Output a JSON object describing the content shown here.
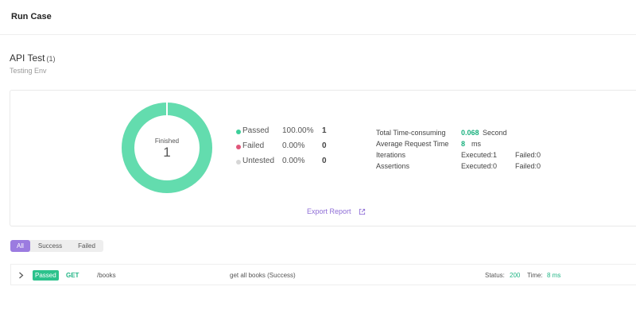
{
  "header": {
    "title": "Run Case"
  },
  "page": {
    "title": "API Test",
    "count": "(1)",
    "env": "Testing Env"
  },
  "summary": {
    "donut_label": "Finished",
    "donut_value": "1",
    "legend": [
      {
        "name": "Passed",
        "percent": "100.00%",
        "count": "1",
        "color": "#3dcf9a"
      },
      {
        "name": "Failed",
        "percent": "0.00%",
        "count": "0",
        "color": "#e0567a"
      },
      {
        "name": "Untested",
        "percent": "0.00%",
        "count": "0",
        "color": "#d6d6d6"
      }
    ],
    "passed_fraction": 1.0,
    "stats": {
      "total_time_label": "Total Time-consuming",
      "total_time_value": "0.068",
      "total_time_unit": "Second",
      "avg_label": "Average Request Time",
      "avg_value": "8",
      "avg_unit": "ms",
      "iterations_label": "Iterations",
      "iterations_executed": "Executed:1",
      "iterations_failed": "Failed:0",
      "assertions_label": "Assertions",
      "assertions_executed": "Executed:0",
      "assertions_failed": "Failed:0"
    },
    "export_label": "Export Report"
  },
  "filters": [
    "All",
    "Success",
    "Failed"
  ],
  "results": [
    {
      "badge": "Passed",
      "method": "GET",
      "path": "/books",
      "description": "get all books (Success)",
      "status_label": "Status:",
      "status_value": "200",
      "time_label": "Time:",
      "time_value": "8 ms"
    }
  ],
  "colors": {
    "accent": "#9b7be0",
    "success": "#3dcf9a",
    "fail": "#e0567a",
    "neutral": "#d6d6d6"
  },
  "icons": {
    "export": "external-link-icon",
    "expand": "chevron-right-icon"
  }
}
